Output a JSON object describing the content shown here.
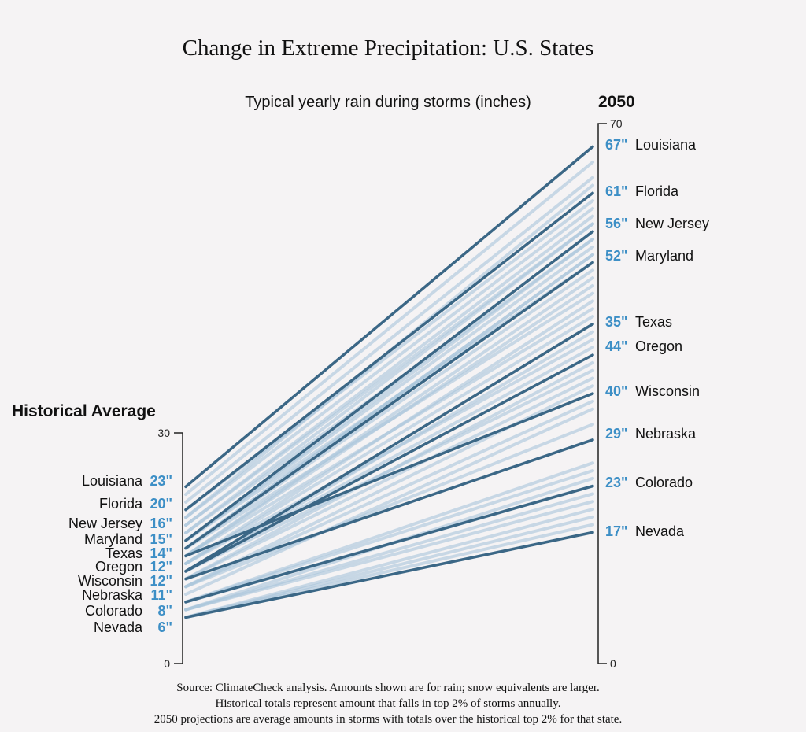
{
  "chart_data": {
    "type": "slope",
    "title": "Change in Extreme Precipitation: U.S. States",
    "subtitle": "Typical yearly rain during storms (inches)",
    "left_label": "Historical Average",
    "right_label": "2050",
    "left_axis": {
      "range": [
        0,
        30
      ],
      "ticks": [
        "0",
        "30"
      ]
    },
    "right_axis": {
      "range": [
        0,
        70
      ],
      "ticks": [
        "0",
        "70"
      ]
    },
    "colors": {
      "highlight": "#3b6786",
      "background": "#a9c5da",
      "value_label": "#3d8fc6"
    },
    "highlighted": [
      {
        "state": "Louisiana",
        "historical": 23,
        "historical_label": "23\"",
        "projected": 67,
        "projected_label": "67\""
      },
      {
        "state": "Florida",
        "historical": 20,
        "historical_label": "20\"",
        "projected": 61,
        "projected_label": "61\""
      },
      {
        "state": "New Jersey",
        "historical": 16,
        "historical_label": "16\"",
        "projected": 56,
        "projected_label": "56\""
      },
      {
        "state": "Maryland",
        "historical": 15,
        "historical_label": "15\"",
        "projected": 52,
        "projected_label": "52\""
      },
      {
        "state": "Texas",
        "historical": 14,
        "historical_label": "14\"",
        "projected": 35,
        "projected_label": "35\""
      },
      {
        "state": "Oregon",
        "historical": 12,
        "historical_label": "12\"",
        "projected": 44,
        "projected_label": "44\""
      },
      {
        "state": "Wisconsin",
        "historical": 12,
        "historical_label": "12\"",
        "projected": 40,
        "projected_label": "40\""
      },
      {
        "state": "Nebraska",
        "historical": 11,
        "historical_label": "11\"",
        "projected": 29,
        "projected_label": "29\""
      },
      {
        "state": "Colorado",
        "historical": 8,
        "historical_label": "8\"",
        "projected": 23,
        "projected_label": "23\""
      },
      {
        "state": "Nevada",
        "historical": 6,
        "historical_label": "6\"",
        "projected": 17,
        "projected_label": "17\""
      }
    ],
    "other_states": [
      [
        22,
        65
      ],
      [
        21,
        63
      ],
      [
        19,
        62
      ],
      [
        20,
        60
      ],
      [
        19,
        59
      ],
      [
        18,
        58
      ],
      [
        17,
        57
      ],
      [
        18,
        57
      ],
      [
        17,
        55
      ],
      [
        16,
        55
      ],
      [
        16,
        54
      ],
      [
        15,
        53
      ],
      [
        15,
        53
      ],
      [
        16,
        52
      ],
      [
        15,
        51
      ],
      [
        14,
        50
      ],
      [
        14,
        49
      ],
      [
        15,
        48
      ],
      [
        13,
        47
      ],
      [
        14,
        46
      ],
      [
        13,
        45
      ],
      [
        12,
        43
      ],
      [
        13,
        42
      ],
      [
        12,
        41
      ],
      [
        11,
        39
      ],
      [
        12,
        38
      ],
      [
        11,
        37
      ],
      [
        10,
        36
      ],
      [
        10,
        34
      ],
      [
        9,
        33
      ],
      [
        10,
        31
      ],
      [
        8,
        26
      ],
      [
        8,
        25
      ],
      [
        7,
        24
      ],
      [
        8,
        23
      ],
      [
        7,
        22
      ],
      [
        7,
        21
      ],
      [
        6,
        20
      ],
      [
        6,
        19
      ],
      [
        6,
        18
      ]
    ],
    "source_notes": [
      "Source: ClimateCheck analysis. Amounts shown are for rain; snow equivalents are larger.",
      "Historical totals represent amount that falls in top 2% of storms annually.",
      "2050 projections are average amounts in storms with totals over the historical top 2% for that state."
    ]
  }
}
